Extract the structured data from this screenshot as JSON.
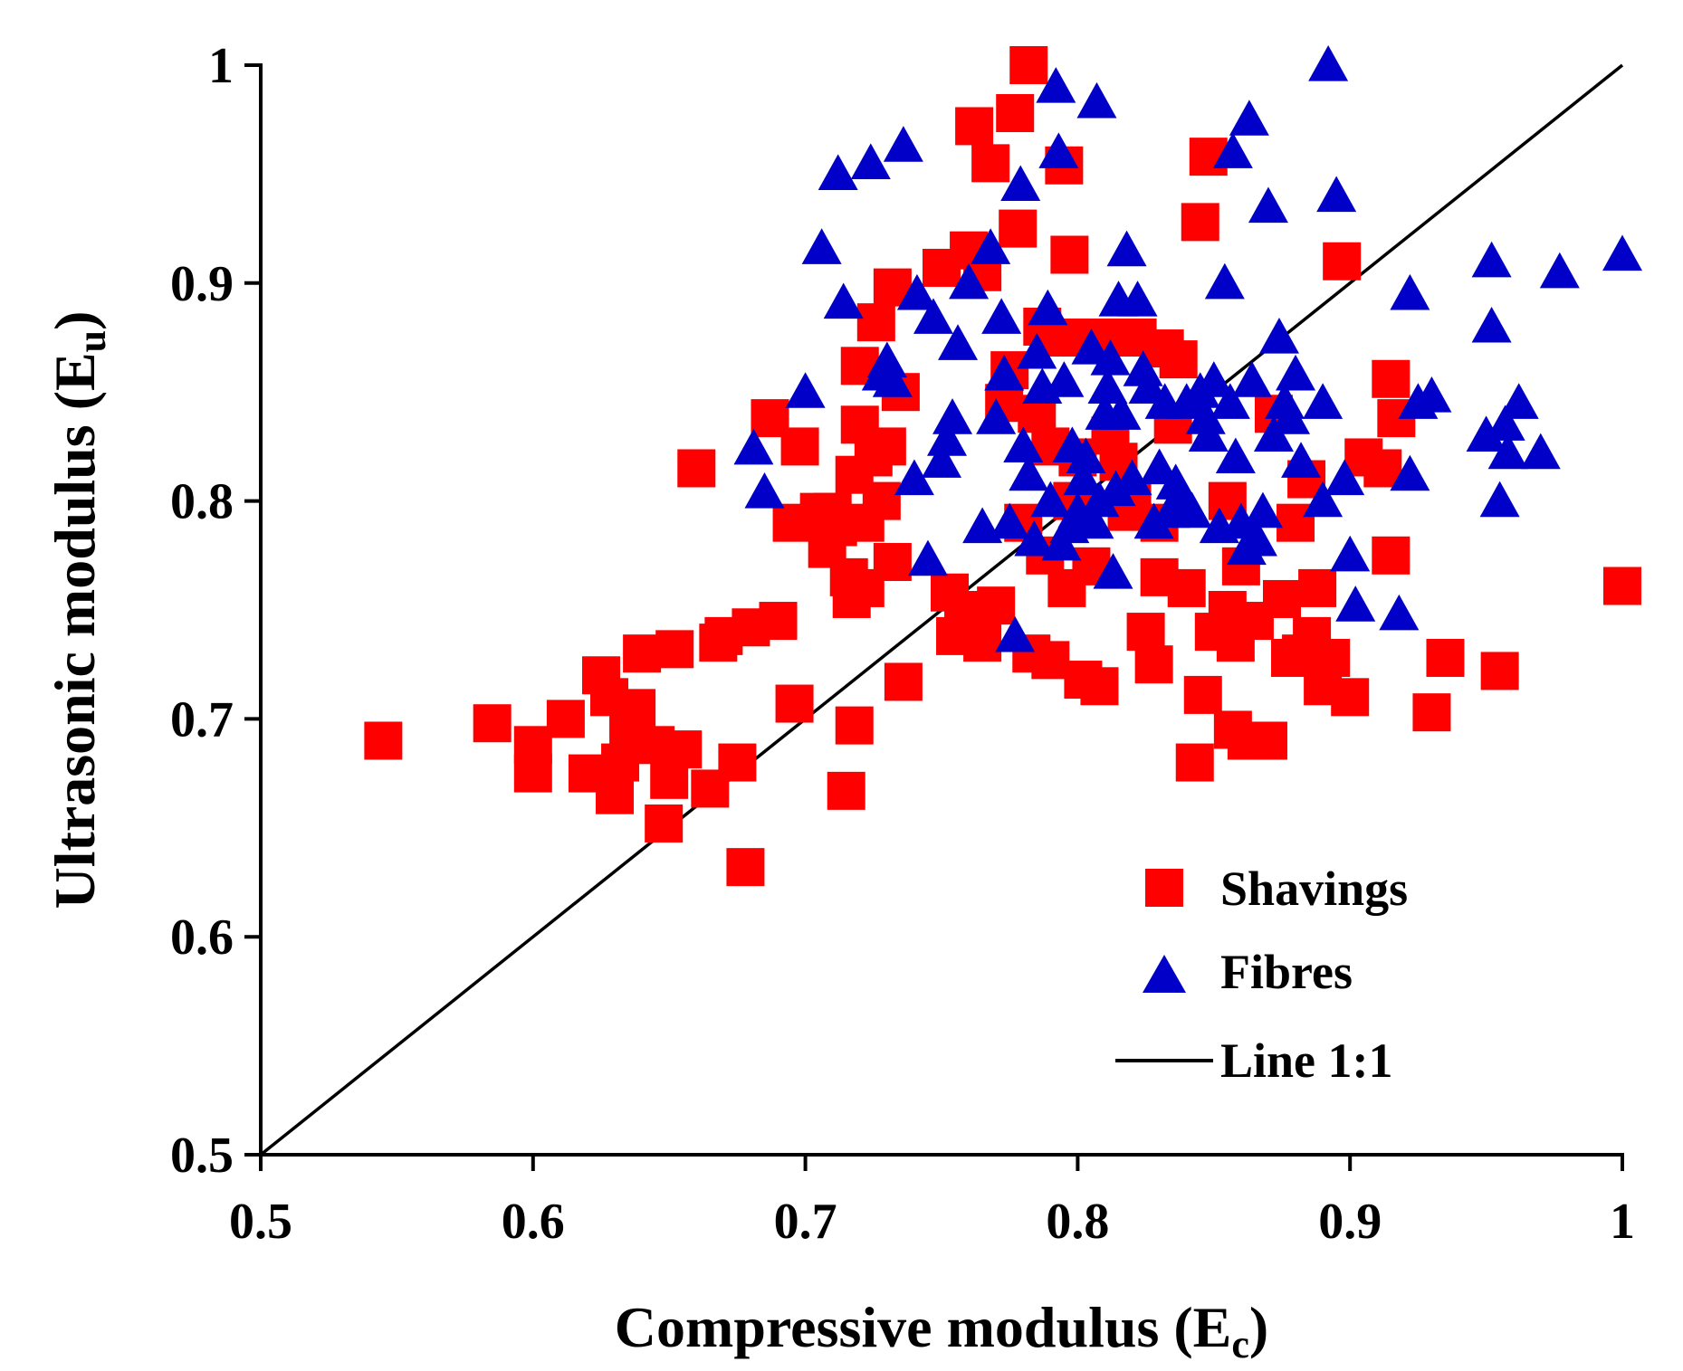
{
  "chart_data": {
    "type": "scatter",
    "title": "",
    "xlabel": "Compressive modulus (E",
    "xlabel_sub": "c",
    "xlabel_end": ")",
    "ylabel": "Ultrasonic modulus (E",
    "ylabel_sub": "u",
    "ylabel_end": ")",
    "xlim": [
      0.5,
      1.0
    ],
    "ylim": [
      0.5,
      1.0
    ],
    "x_ticks": [
      0.5,
      0.6,
      0.7,
      0.8,
      0.9,
      1.0
    ],
    "y_ticks": [
      0.5,
      0.6,
      0.7,
      0.8,
      0.9,
      1.0
    ],
    "x_tick_labels": [
      "0.5",
      "0.6",
      "0.7",
      "0.8",
      "0.9",
      "1"
    ],
    "y_tick_labels": [
      "0.5",
      "0.6",
      "0.7",
      "0.8",
      "0.9",
      "1"
    ],
    "grid": false,
    "legend_position": "bottom-right",
    "series": [
      {
        "name": "Shavings",
        "marker": "square",
        "color": "#ff0000",
        "points": [
          [
            0.545,
            0.69
          ],
          [
            0.585,
            0.698
          ],
          [
            0.6,
            0.688
          ],
          [
            0.6,
            0.675
          ],
          [
            0.612,
            0.7
          ],
          [
            0.62,
            0.675
          ],
          [
            0.625,
            0.72
          ],
          [
            0.628,
            0.71
          ],
          [
            0.63,
            0.665
          ],
          [
            0.632,
            0.68
          ],
          [
            0.635,
            0.695
          ],
          [
            0.638,
            0.705
          ],
          [
            0.64,
            0.73
          ],
          [
            0.645,
            0.688
          ],
          [
            0.648,
            0.652
          ],
          [
            0.65,
            0.672
          ],
          [
            0.652,
            0.732
          ],
          [
            0.655,
            0.686
          ],
          [
            0.66,
            0.815
          ],
          [
            0.665,
            0.668
          ],
          [
            0.668,
            0.735
          ],
          [
            0.67,
            0.738
          ],
          [
            0.675,
            0.68
          ],
          [
            0.678,
            0.632
          ],
          [
            0.68,
            0.742
          ],
          [
            0.69,
            0.745
          ],
          [
            0.687,
            0.838
          ],
          [
            0.695,
            0.79
          ],
          [
            0.696,
            0.707
          ],
          [
            0.698,
            0.825
          ],
          [
            0.705,
            0.795
          ],
          [
            0.708,
            0.778
          ],
          [
            0.71,
            0.795
          ],
          [
            0.712,
            0.788
          ],
          [
            0.715,
            0.667
          ],
          [
            0.716,
            0.765
          ],
          [
            0.717,
            0.755
          ],
          [
            0.718,
            0.697
          ],
          [
            0.718,
            0.812
          ],
          [
            0.72,
            0.862
          ],
          [
            0.72,
            0.835
          ],
          [
            0.722,
            0.79
          ],
          [
            0.722,
            0.76
          ],
          [
            0.725,
            0.82
          ],
          [
            0.726,
            0.882
          ],
          [
            0.728,
            0.8
          ],
          [
            0.73,
            0.825
          ],
          [
            0.732,
            0.898
          ],
          [
            0.732,
            0.772
          ],
          [
            0.735,
            0.85
          ],
          [
            0.736,
            0.717
          ],
          [
            0.75,
            0.907
          ],
          [
            0.753,
            0.758
          ],
          [
            0.755,
            0.738
          ],
          [
            0.758,
            0.75
          ],
          [
            0.76,
            0.915
          ],
          [
            0.762,
            0.972
          ],
          [
            0.765,
            0.735
          ],
          [
            0.765,
            0.905
          ],
          [
            0.768,
            0.955
          ],
          [
            0.77,
            0.752
          ],
          [
            0.773,
            0.845
          ],
          [
            0.775,
            0.86
          ],
          [
            0.777,
            0.978
          ],
          [
            0.778,
            0.925
          ],
          [
            0.78,
            0.79
          ],
          [
            0.782,
            1.0
          ],
          [
            0.783,
            0.73
          ],
          [
            0.785,
            0.84
          ],
          [
            0.787,
            0.88
          ],
          [
            0.788,
            0.775
          ],
          [
            0.79,
            0.825
          ],
          [
            0.79,
            0.727
          ],
          [
            0.793,
            0.875
          ],
          [
            0.795,
            0.954
          ],
          [
            0.796,
            0.76
          ],
          [
            0.797,
            0.913
          ],
          [
            0.798,
            0.8
          ],
          [
            0.8,
            0.82
          ],
          [
            0.802,
            0.718
          ],
          [
            0.803,
            0.875
          ],
          [
            0.805,
            0.77
          ],
          [
            0.808,
            0.715
          ],
          [
            0.81,
            0.875
          ],
          [
            0.812,
            0.83
          ],
          [
            0.815,
            0.818
          ],
          [
            0.818,
            0.795
          ],
          [
            0.82,
            0.8
          ],
          [
            0.822,
            0.875
          ],
          [
            0.825,
            0.74
          ],
          [
            0.828,
            0.725
          ],
          [
            0.83,
            0.765
          ],
          [
            0.83,
            0.79
          ],
          [
            0.832,
            0.87
          ],
          [
            0.835,
            0.835
          ],
          [
            0.837,
            0.865
          ],
          [
            0.84,
            0.76
          ],
          [
            0.845,
            0.928
          ],
          [
            0.843,
            0.68
          ],
          [
            0.846,
            0.711
          ],
          [
            0.848,
            0.958
          ],
          [
            0.85,
            0.74
          ],
          [
            0.855,
            0.8
          ],
          [
            0.855,
            0.75
          ],
          [
            0.857,
            0.695
          ],
          [
            0.858,
            0.735
          ],
          [
            0.86,
            0.77
          ],
          [
            0.862,
            0.69
          ],
          [
            0.865,
            0.745
          ],
          [
            0.87,
            0.69
          ],
          [
            0.872,
            0.84
          ],
          [
            0.875,
            0.755
          ],
          [
            0.878,
            0.728
          ],
          [
            0.88,
            0.79
          ],
          [
            0.882,
            0.73
          ],
          [
            0.884,
            0.81
          ],
          [
            0.886,
            0.738
          ],
          [
            0.888,
            0.76
          ],
          [
            0.89,
            0.715
          ],
          [
            0.893,
            0.728
          ],
          [
            0.897,
            0.91
          ],
          [
            0.9,
            0.71
          ],
          [
            0.905,
            0.82
          ],
          [
            0.912,
            0.815
          ],
          [
            0.915,
            0.775
          ],
          [
            0.917,
            0.838
          ],
          [
            0.915,
            0.856
          ],
          [
            0.93,
            0.703
          ],
          [
            0.935,
            0.728
          ],
          [
            0.955,
            0.722
          ],
          [
            1.0,
            0.761
          ]
        ]
      },
      {
        "name": "Fibres",
        "marker": "triangle",
        "color": "#0000c8",
        "points": [
          [
            0.681,
            0.824
          ],
          [
            0.685,
            0.804
          ],
          [
            0.7,
            0.85
          ],
          [
            0.706,
            0.916
          ],
          [
            0.712,
            0.95
          ],
          [
            0.714,
            0.891
          ],
          [
            0.724,
            0.955
          ],
          [
            0.728,
            0.858
          ],
          [
            0.73,
            0.864
          ],
          [
            0.732,
            0.855
          ],
          [
            0.736,
            0.963
          ],
          [
            0.74,
            0.81
          ],
          [
            0.741,
            0.895
          ],
          [
            0.745,
            0.773
          ],
          [
            0.747,
            0.884
          ],
          [
            0.75,
            0.818
          ],
          [
            0.752,
            0.828
          ],
          [
            0.754,
            0.838
          ],
          [
            0.756,
            0.872
          ],
          [
            0.76,
            0.9
          ],
          [
            0.765,
            0.788
          ],
          [
            0.768,
            0.916
          ],
          [
            0.77,
            0.838
          ],
          [
            0.772,
            0.884
          ],
          [
            0.773,
            0.858
          ],
          [
            0.775,
            0.79
          ],
          [
            0.777,
            0.738
          ],
          [
            0.779,
            0.945
          ],
          [
            0.78,
            0.825
          ],
          [
            0.782,
            0.812
          ],
          [
            0.784,
            0.782
          ],
          [
            0.785,
            0.868
          ],
          [
            0.787,
            0.852
          ],
          [
            0.789,
            0.888
          ],
          [
            0.79,
            0.8
          ],
          [
            0.792,
            0.99
          ],
          [
            0.793,
            0.96
          ],
          [
            0.794,
            0.78
          ],
          [
            0.795,
            0.855
          ],
          [
            0.797,
            0.788
          ],
          [
            0.798,
            0.825
          ],
          [
            0.8,
            0.795
          ],
          [
            0.802,
            0.81
          ],
          [
            0.803,
            0.82
          ],
          [
            0.805,
            0.87
          ],
          [
            0.806,
            0.79
          ],
          [
            0.807,
            0.983
          ],
          [
            0.808,
            0.8
          ],
          [
            0.81,
            0.84
          ],
          [
            0.811,
            0.852
          ],
          [
            0.812,
            0.865
          ],
          [
            0.813,
            0.767
          ],
          [
            0.814,
            0.805
          ],
          [
            0.815,
            0.892
          ],
          [
            0.816,
            0.84
          ],
          [
            0.818,
            0.915
          ],
          [
            0.82,
            0.81
          ],
          [
            0.822,
            0.892
          ],
          [
            0.824,
            0.86
          ],
          [
            0.826,
            0.852
          ],
          [
            0.828,
            0.79
          ],
          [
            0.83,
            0.815
          ],
          [
            0.832,
            0.845
          ],
          [
            0.834,
            0.795
          ],
          [
            0.836,
            0.808
          ],
          [
            0.838,
            0.8
          ],
          [
            0.84,
            0.845
          ],
          [
            0.842,
            0.795
          ],
          [
            0.845,
            0.85
          ],
          [
            0.847,
            0.838
          ],
          [
            0.848,
            0.83
          ],
          [
            0.85,
            0.855
          ],
          [
            0.852,
            0.788
          ],
          [
            0.854,
            0.9
          ],
          [
            0.856,
            0.845
          ],
          [
            0.857,
            0.96
          ],
          [
            0.858,
            0.82
          ],
          [
            0.86,
            0.79
          ],
          [
            0.862,
            0.778
          ],
          [
            0.863,
            0.975
          ],
          [
            0.864,
            0.855
          ],
          [
            0.866,
            0.782
          ],
          [
            0.868,
            0.795
          ],
          [
            0.87,
            0.935
          ],
          [
            0.872,
            0.83
          ],
          [
            0.874,
            0.875
          ],
          [
            0.876,
            0.845
          ],
          [
            0.878,
            0.838
          ],
          [
            0.88,
            0.858
          ],
          [
            0.882,
            0.818
          ],
          [
            0.89,
            0.8
          ],
          [
            0.89,
            0.845
          ],
          [
            0.892,
            1.0
          ],
          [
            0.895,
            0.94
          ],
          [
            0.898,
            0.81
          ],
          [
            0.9,
            0.775
          ],
          [
            0.902,
            0.752
          ],
          [
            0.918,
            0.748
          ],
          [
            0.922,
            0.895
          ],
          [
            0.922,
            0.812
          ],
          [
            0.925,
            0.845
          ],
          [
            0.93,
            0.848
          ],
          [
            0.95,
            0.83
          ],
          [
            0.952,
            0.91
          ],
          [
            0.952,
            0.88
          ],
          [
            0.955,
            0.8
          ],
          [
            0.957,
            0.835
          ],
          [
            0.958,
            0.822
          ],
          [
            0.962,
            0.845
          ],
          [
            0.97,
            0.822
          ],
          [
            0.977,
            0.905
          ],
          [
            1.0,
            0.913
          ]
        ]
      },
      {
        "name": "Line 1:1",
        "type": "line",
        "color": "#000000",
        "points": [
          [
            0.5,
            0.5
          ],
          [
            1.0,
            1.0
          ]
        ]
      }
    ]
  }
}
